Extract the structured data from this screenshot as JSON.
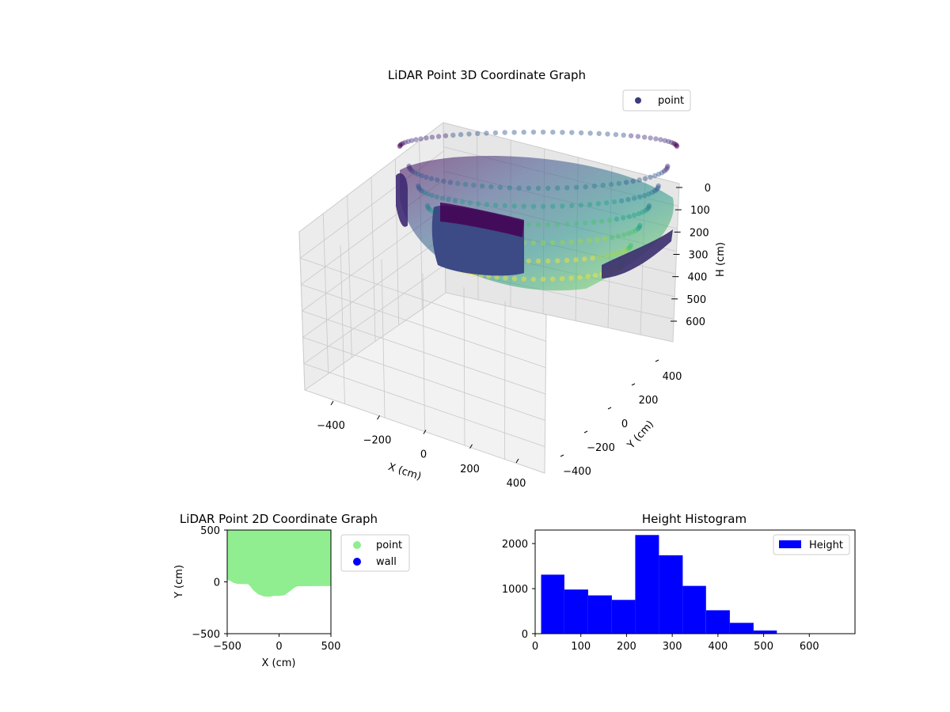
{
  "charts": {
    "scatter3d": {
      "type": "scatter",
      "title": "LiDAR Point 3D Coordinate Graph",
      "xlabel": "X (cm)",
      "ylabel": "Y (cm)",
      "zlabel": "H (cm)",
      "legend": [
        "point"
      ],
      "legend_placement": "top-right",
      "x_ticks": [
        "−400",
        "−200",
        "0",
        "200",
        "400"
      ],
      "y_ticks": [
        "400",
        "200",
        "0",
        "−200",
        "−400"
      ],
      "z_ticks": [
        "0",
        "100",
        "200",
        "300",
        "400",
        "500",
        "600"
      ],
      "xlim": [
        -500,
        500
      ],
      "ylim": [
        -500,
        500
      ],
      "zlim": [
        0,
        650
      ],
      "z_inverted": true,
      "grid": true,
      "colormap": "viridis",
      "colors": {
        "legend_marker": "#3b3b7d"
      }
    },
    "scatter2d": {
      "type": "scatter",
      "title": "LiDAR Point 2D Coordinate Graph",
      "xlabel": "X (cm)",
      "ylabel": "Y (cm)",
      "x_ticks": [
        "−500",
        "0",
        "500"
      ],
      "y_ticks": [
        "500",
        "0",
        "−500"
      ],
      "xlim": [
        -500,
        500
      ],
      "ylim": [
        -500,
        500
      ],
      "series": [
        {
          "name": "point",
          "color": "#90ee90"
        },
        {
          "name": "wall",
          "color": "#0000ff"
        }
      ],
      "point_region_lower_boundary": [
        {
          "x": -500,
          "y": 20
        },
        {
          "x": -470,
          "y": 10
        },
        {
          "x": -440,
          "y": -10
        },
        {
          "x": -400,
          "y": -20
        },
        {
          "x": -300,
          "y": -22
        },
        {
          "x": -280,
          "y": -40
        },
        {
          "x": -250,
          "y": -80
        },
        {
          "x": -200,
          "y": -120
        },
        {
          "x": -150,
          "y": -140
        },
        {
          "x": -100,
          "y": -145
        },
        {
          "x": -50,
          "y": -135
        },
        {
          "x": 0,
          "y": -135
        },
        {
          "x": 50,
          "y": -130
        },
        {
          "x": 100,
          "y": -95
        },
        {
          "x": 150,
          "y": -55
        },
        {
          "x": 180,
          "y": -42
        },
        {
          "x": 500,
          "y": -40
        }
      ],
      "legend_placement": "outside-right"
    },
    "histogram": {
      "type": "bar",
      "title": "Height Histogram",
      "legend": [
        "Height"
      ],
      "legend_placement": "top-right",
      "color": "#0000ff",
      "x_ticks": [
        "0",
        "100",
        "200",
        "300",
        "400",
        "500",
        "600"
      ],
      "y_ticks": [
        "0",
        "1000",
        "2000"
      ],
      "xlim": [
        0,
        700
      ],
      "ylim": [
        0,
        2300
      ],
      "bins": [
        {
          "x0": 13,
          "x1": 64,
          "count": 1310
        },
        {
          "x0": 64,
          "x1": 116,
          "count": 980
        },
        {
          "x0": 116,
          "x1": 168,
          "count": 850
        },
        {
          "x0": 168,
          "x1": 219,
          "count": 750
        },
        {
          "x0": 219,
          "x1": 271,
          "count": 2190
        },
        {
          "x0": 271,
          "x1": 323,
          "count": 1740
        },
        {
          "x0": 323,
          "x1": 374,
          "count": 1060
        },
        {
          "x0": 374,
          "x1": 426,
          "count": 520
        },
        {
          "x0": 426,
          "x1": 478,
          "count": 240
        },
        {
          "x0": 478,
          "x1": 529,
          "count": 70
        }
      ]
    }
  }
}
